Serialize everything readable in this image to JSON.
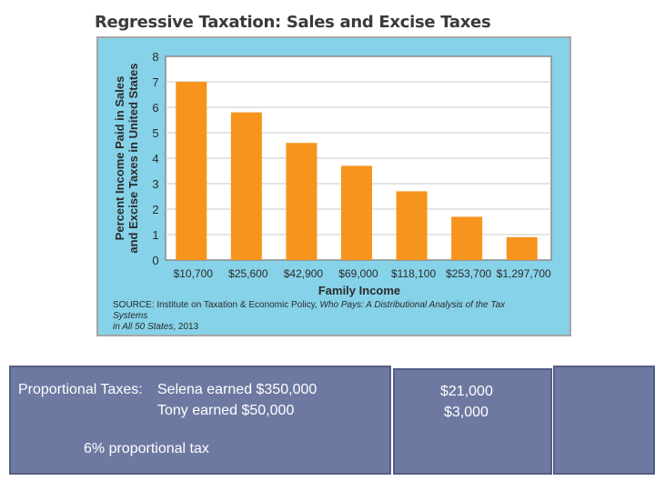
{
  "chart_data": {
    "type": "bar",
    "title": "Regressive Taxation: Sales and Excise Taxes",
    "xlabel": "Family Income",
    "ylabel_lines": [
      "Percent Income Paid in Sales",
      "and Excise Taxes in United States"
    ],
    "categories": [
      "$10,700",
      "$25,600",
      "$42,900",
      "$69,000",
      "$118,100",
      "$253,700",
      "$1,297,700"
    ],
    "values": [
      7.0,
      5.8,
      4.6,
      3.7,
      2.7,
      1.7,
      0.9
    ],
    "ylim": [
      0,
      8
    ],
    "yticks": [
      "0",
      "1",
      "2",
      "3",
      "4",
      "5",
      "6",
      "7",
      "8"
    ],
    "grid": true,
    "bar_color": "#f7941d",
    "plot_background": "#ffffff",
    "panel_background": "#86d2e8",
    "source_line1": "SOURCE: Institute on Taxation & Economic Policy, ",
    "source_italic": "Who Pays: A Distributional Analysis of the Tax Systems",
    "source_line2": "in All 50 States",
    "source_line2_end": ", 2013"
  },
  "slide": {
    "heading": "Proportional Taxes:",
    "line1": "Selena earned $350,000",
    "line2": "Tony earned $50,000",
    "rate_text": "6% proportional tax",
    "result1": "$21,000",
    "result2": "$3,000",
    "box_color": "#6e79a1"
  }
}
